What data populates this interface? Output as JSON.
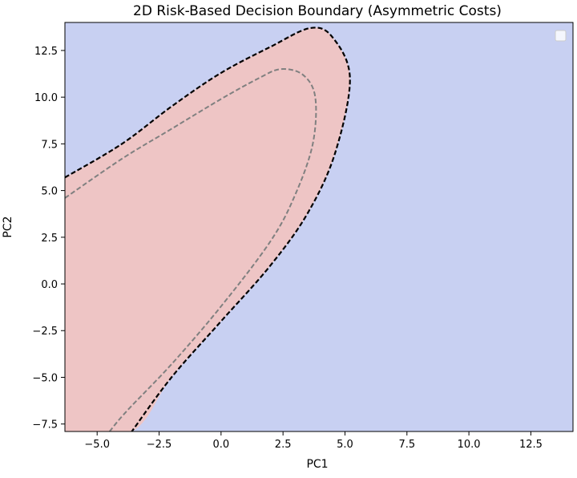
{
  "chart_data": {
    "type": "contour",
    "title": "2D Risk-Based Decision Boundary (Asymmetric Costs)",
    "xlabel": "PC1",
    "ylabel": "PC2",
    "xlim": [
      -6.3,
      14.2
    ],
    "ylim": [
      -7.9,
      14.0
    ],
    "xticks": [
      -5.0,
      -2.5,
      0.0,
      2.5,
      5.0,
      7.5,
      10.0,
      12.5
    ],
    "xtick_labels": [
      "−5.0",
      "−2.5",
      "0.0",
      "2.5",
      "5.0",
      "7.5",
      "10.0",
      "12.5"
    ],
    "yticks": [
      -7.5,
      -5.0,
      -2.5,
      0.0,
      2.5,
      5.0,
      7.5,
      10.0,
      12.5
    ],
    "ytick_labels": [
      "−7.5",
      "−5.0",
      "−2.5",
      "0.0",
      "2.5",
      "5.0",
      "7.5",
      "10.0",
      "12.5"
    ],
    "grid": false,
    "legend": {
      "placement": "top-right",
      "entries": []
    },
    "colors": {
      "background_region": "#c8d0f2",
      "inner_region": "#eec5c5",
      "decision_boundary": "#000000",
      "inner_contour": "#808080"
    },
    "series": [
      {
        "kind": "filled_region",
        "points": [
          [
            -6.3,
            5.7
          ],
          [
            -4.0,
            7.5
          ],
          [
            -2.0,
            9.5
          ],
          [
            0.0,
            11.3
          ],
          [
            2.0,
            12.7
          ],
          [
            3.6,
            13.7
          ],
          [
            4.5,
            13.2
          ],
          [
            5.2,
            11.0
          ],
          [
            4.6,
            7.0
          ],
          [
            3.5,
            3.8
          ],
          [
            2.0,
            1.0
          ],
          [
            0.0,
            -2.0
          ],
          [
            -2.0,
            -5.0
          ],
          [
            -3.6,
            -7.9
          ],
          [
            -6.3,
            -7.9
          ]
        ]
      },
      {
        "kind": "decision_boundary",
        "style": "dashed",
        "points": [
          [
            -6.3,
            5.7
          ],
          [
            -4.0,
            7.5
          ],
          [
            -2.0,
            9.5
          ],
          [
            0.0,
            11.3
          ],
          [
            2.0,
            12.7
          ],
          [
            3.6,
            13.7
          ],
          [
            4.5,
            13.2
          ],
          [
            5.2,
            11.0
          ],
          [
            4.6,
            7.0
          ],
          [
            3.5,
            3.8
          ],
          [
            2.0,
            1.0
          ],
          [
            0.0,
            -2.0
          ],
          [
            -2.0,
            -5.0
          ],
          [
            -3.6,
            -7.9
          ]
        ]
      },
      {
        "kind": "inner_contour",
        "style": "dashed",
        "points": [
          [
            -6.3,
            4.6
          ],
          [
            -4.0,
            6.7
          ],
          [
            -2.0,
            8.3
          ],
          [
            0.0,
            9.9
          ],
          [
            1.5,
            11.0
          ],
          [
            2.4,
            11.5
          ],
          [
            3.3,
            11.2
          ],
          [
            3.8,
            10.0
          ],
          [
            3.7,
            7.5
          ],
          [
            3.0,
            4.8
          ],
          [
            2.0,
            2.3
          ],
          [
            0.0,
            -1.2
          ],
          [
            -2.0,
            -4.3
          ],
          [
            -3.8,
            -6.8
          ],
          [
            -4.5,
            -7.9
          ]
        ]
      }
    ]
  }
}
